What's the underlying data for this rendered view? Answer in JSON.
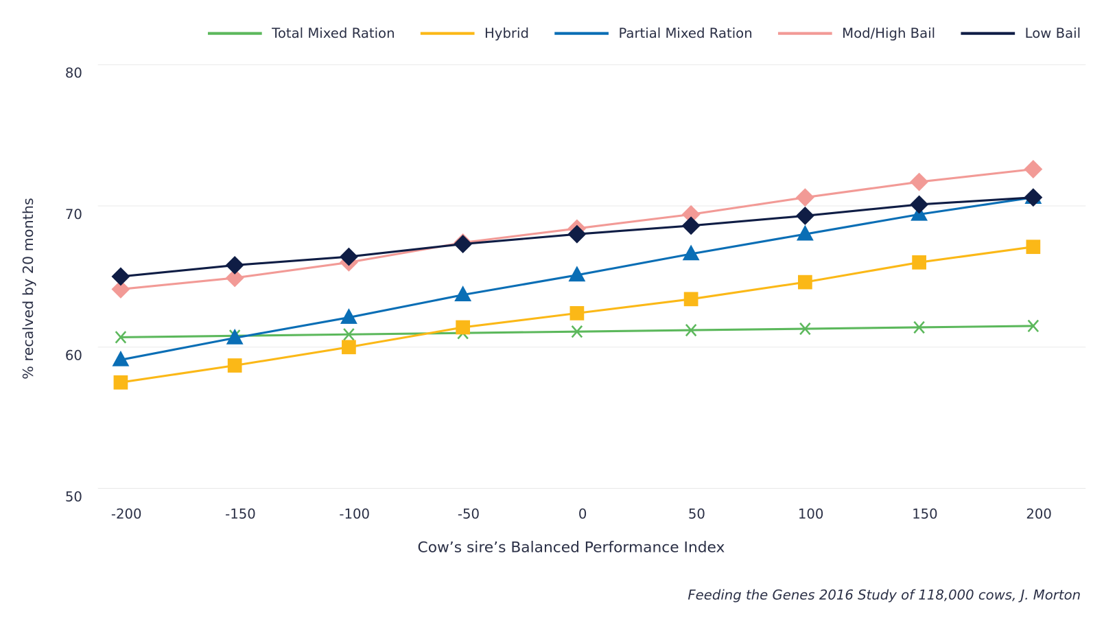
{
  "chart_data": {
    "type": "line",
    "x_label": "Cow’s sire’s Balanced Performance Index",
    "y_label": "% recalved by 20 months",
    "source": "Feeding the Genes 2016 Study of 118,000 cows, J. Morton",
    "x": [
      -200,
      -150,
      -100,
      -50,
      0,
      50,
      100,
      150,
      200
    ],
    "xlim": [
      -210,
      223
    ],
    "xticks": [
      -200,
      -150,
      -100,
      -50,
      0,
      50,
      100,
      150,
      200
    ],
    "ylim": [
      50,
      80
    ],
    "yticks": [
      50,
      60,
      70,
      80
    ],
    "grid": true,
    "legend": "top-right",
    "series": [
      {
        "name": "Total Mixed Ration",
        "color": "#5cb85c",
        "marker": "x",
        "values": [
          60.7,
          60.8,
          60.9,
          61.0,
          61.1,
          61.2,
          61.3,
          61.4,
          61.5
        ]
      },
      {
        "name": "Hybrid",
        "color": "#fbb817",
        "marker": "square",
        "values": [
          57.5,
          58.7,
          60.0,
          61.4,
          62.4,
          63.4,
          64.6,
          66.0,
          67.1
        ]
      },
      {
        "name": "Partial Mixed Ration",
        "color": "#0a6eb5",
        "marker": "triangle",
        "values": [
          59.1,
          60.65,
          62.1,
          63.7,
          65.1,
          66.6,
          68.0,
          69.4,
          70.6
        ]
      },
      {
        "name": "Mod/High Bail",
        "color": "#f29a96",
        "marker": "diamond",
        "values": [
          64.1,
          64.9,
          66.0,
          67.4,
          68.4,
          69.4,
          70.6,
          71.7,
          72.6
        ]
      },
      {
        "name": "Low Bail",
        "color": "#0f1d45",
        "marker": "diamond",
        "values": [
          65.0,
          65.8,
          66.4,
          67.3,
          68.0,
          68.6,
          69.3,
          70.1,
          70.6
        ]
      }
    ]
  }
}
